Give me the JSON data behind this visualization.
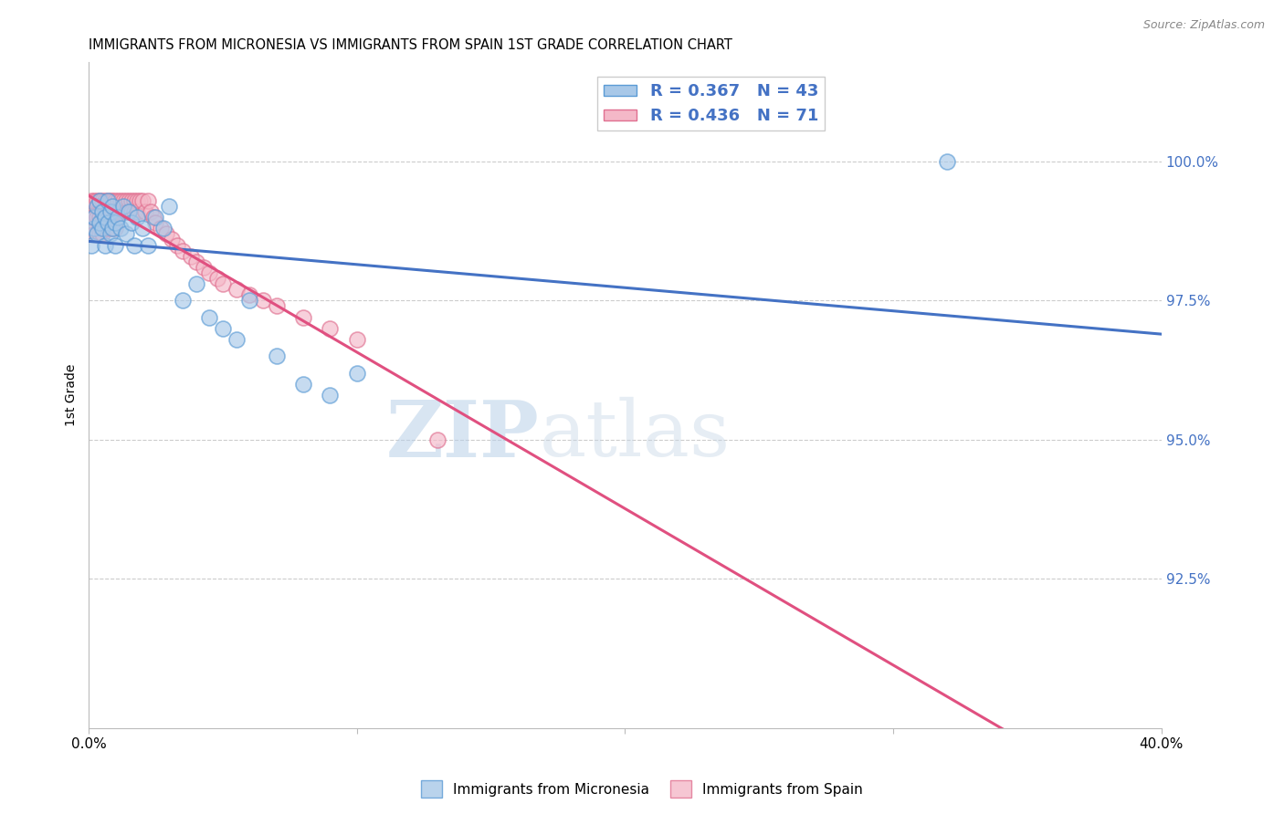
{
  "title": "IMMIGRANTS FROM MICRONESIA VS IMMIGRANTS FROM SPAIN 1ST GRADE CORRELATION CHART",
  "source": "Source: ZipAtlas.com",
  "ylabel": "1st Grade",
  "ylabel_right_labels": [
    "100.0%",
    "97.5%",
    "95.0%",
    "92.5%"
  ],
  "ylabel_right_values": [
    1.0,
    0.975,
    0.95,
    0.925
  ],
  "xmin": 0.0,
  "xmax": 0.4,
  "ymin": 0.898,
  "ymax": 1.018,
  "color_micronesia": "#a8c8e8",
  "color_micronesia_edge": "#5b9bd5",
  "color_spain": "#f4b8c8",
  "color_spain_edge": "#e07090",
  "color_micronesia_line": "#4472c4",
  "color_spain_line": "#e05080",
  "watermark_zip": "ZIP",
  "watermark_atlas": "atlas",
  "micronesia_x": [
    0.001,
    0.002,
    0.002,
    0.003,
    0.003,
    0.004,
    0.004,
    0.005,
    0.005,
    0.006,
    0.006,
    0.007,
    0.007,
    0.008,
    0.008,
    0.009,
    0.009,
    0.01,
    0.01,
    0.011,
    0.012,
    0.013,
    0.014,
    0.015,
    0.016,
    0.017,
    0.018,
    0.02,
    0.022,
    0.025,
    0.028,
    0.03,
    0.035,
    0.04,
    0.045,
    0.05,
    0.055,
    0.06,
    0.07,
    0.08,
    0.09,
    0.1,
    0.32
  ],
  "micronesia_y": [
    0.985,
    0.988,
    0.99,
    0.987,
    0.992,
    0.989,
    0.993,
    0.988,
    0.991,
    0.99,
    0.985,
    0.989,
    0.993,
    0.987,
    0.991,
    0.988,
    0.992,
    0.989,
    0.985,
    0.99,
    0.988,
    0.992,
    0.987,
    0.991,
    0.989,
    0.985,
    0.99,
    0.988,
    0.985,
    0.99,
    0.988,
    0.992,
    0.975,
    0.978,
    0.972,
    0.97,
    0.968,
    0.975,
    0.965,
    0.96,
    0.958,
    0.962,
    1.0
  ],
  "spain_x": [
    0.001,
    0.001,
    0.002,
    0.002,
    0.002,
    0.003,
    0.003,
    0.003,
    0.004,
    0.004,
    0.004,
    0.005,
    0.005,
    0.005,
    0.006,
    0.006,
    0.006,
    0.007,
    0.007,
    0.007,
    0.008,
    0.008,
    0.008,
    0.009,
    0.009,
    0.009,
    0.01,
    0.01,
    0.01,
    0.011,
    0.011,
    0.012,
    0.012,
    0.013,
    0.013,
    0.014,
    0.014,
    0.015,
    0.015,
    0.016,
    0.016,
    0.017,
    0.017,
    0.018,
    0.018,
    0.019,
    0.02,
    0.021,
    0.022,
    0.023,
    0.024,
    0.025,
    0.027,
    0.029,
    0.031,
    0.033,
    0.035,
    0.038,
    0.04,
    0.043,
    0.045,
    0.048,
    0.05,
    0.055,
    0.06,
    0.065,
    0.07,
    0.08,
    0.09,
    0.1,
    0.13
  ],
  "spain_y": [
    0.993,
    0.99,
    0.993,
    0.99,
    0.987,
    0.993,
    0.99,
    0.987,
    0.993,
    0.99,
    0.987,
    0.993,
    0.99,
    0.987,
    0.993,
    0.991,
    0.988,
    0.993,
    0.991,
    0.988,
    0.993,
    0.991,
    0.988,
    0.993,
    0.991,
    0.988,
    0.993,
    0.991,
    0.988,
    0.993,
    0.991,
    0.993,
    0.991,
    0.993,
    0.991,
    0.993,
    0.991,
    0.993,
    0.991,
    0.993,
    0.991,
    0.993,
    0.991,
    0.993,
    0.991,
    0.993,
    0.993,
    0.991,
    0.993,
    0.991,
    0.99,
    0.989,
    0.988,
    0.987,
    0.986,
    0.985,
    0.984,
    0.983,
    0.982,
    0.981,
    0.98,
    0.979,
    0.978,
    0.977,
    0.976,
    0.975,
    0.974,
    0.972,
    0.97,
    0.968,
    0.95
  ]
}
